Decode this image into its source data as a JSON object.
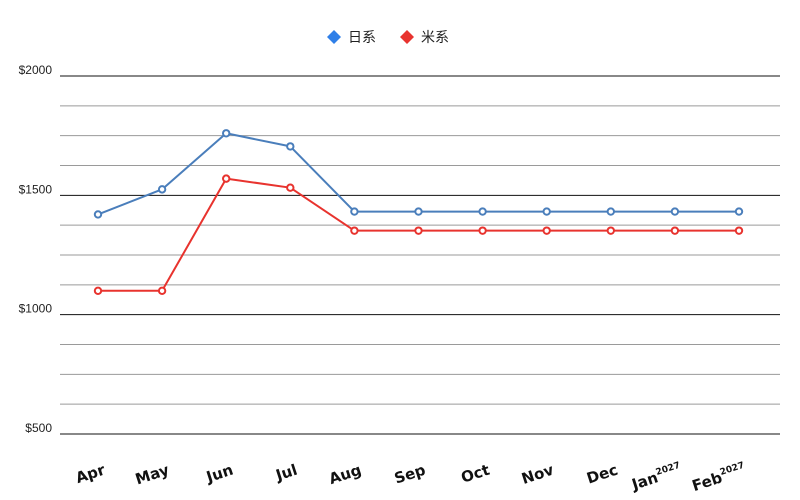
{
  "chart_data": {
    "type": "line",
    "categories": [
      "Apr",
      "May",
      "Jun",
      "Jul",
      "Aug",
      "Sep",
      "Oct",
      "Nov",
      "Dec",
      "Jan",
      "Feb"
    ],
    "category_superscripts": [
      "",
      "",
      "",
      "",
      "",
      "",
      "",
      "",
      "",
      "2027",
      "2027"
    ],
    "series": [
      {
        "name": "日系",
        "color": "#4a7ebb",
        "values": [
          1420,
          1525,
          1760,
          1705,
          1432,
          1432,
          1432,
          1432,
          1432,
          1432,
          1432
        ]
      },
      {
        "name": "米系",
        "color": "#e8332e",
        "values": [
          1100,
          1100,
          1570,
          1532,
          1352,
          1352,
          1352,
          1352,
          1352,
          1352,
          1352
        ]
      }
    ],
    "yticks": [
      500,
      1000,
      1500,
      2000
    ],
    "ytick_labels": [
      "$500",
      "$1000",
      "$1500",
      "$2000"
    ],
    "ylim": [
      500,
      2000
    ],
    "legend_position": "top-center",
    "legend_markers": {
      "日系": "#2f7fe8",
      "米系": "#e8332e"
    },
    "grid": true,
    "title": "",
    "xlabel": "",
    "ylabel": ""
  }
}
